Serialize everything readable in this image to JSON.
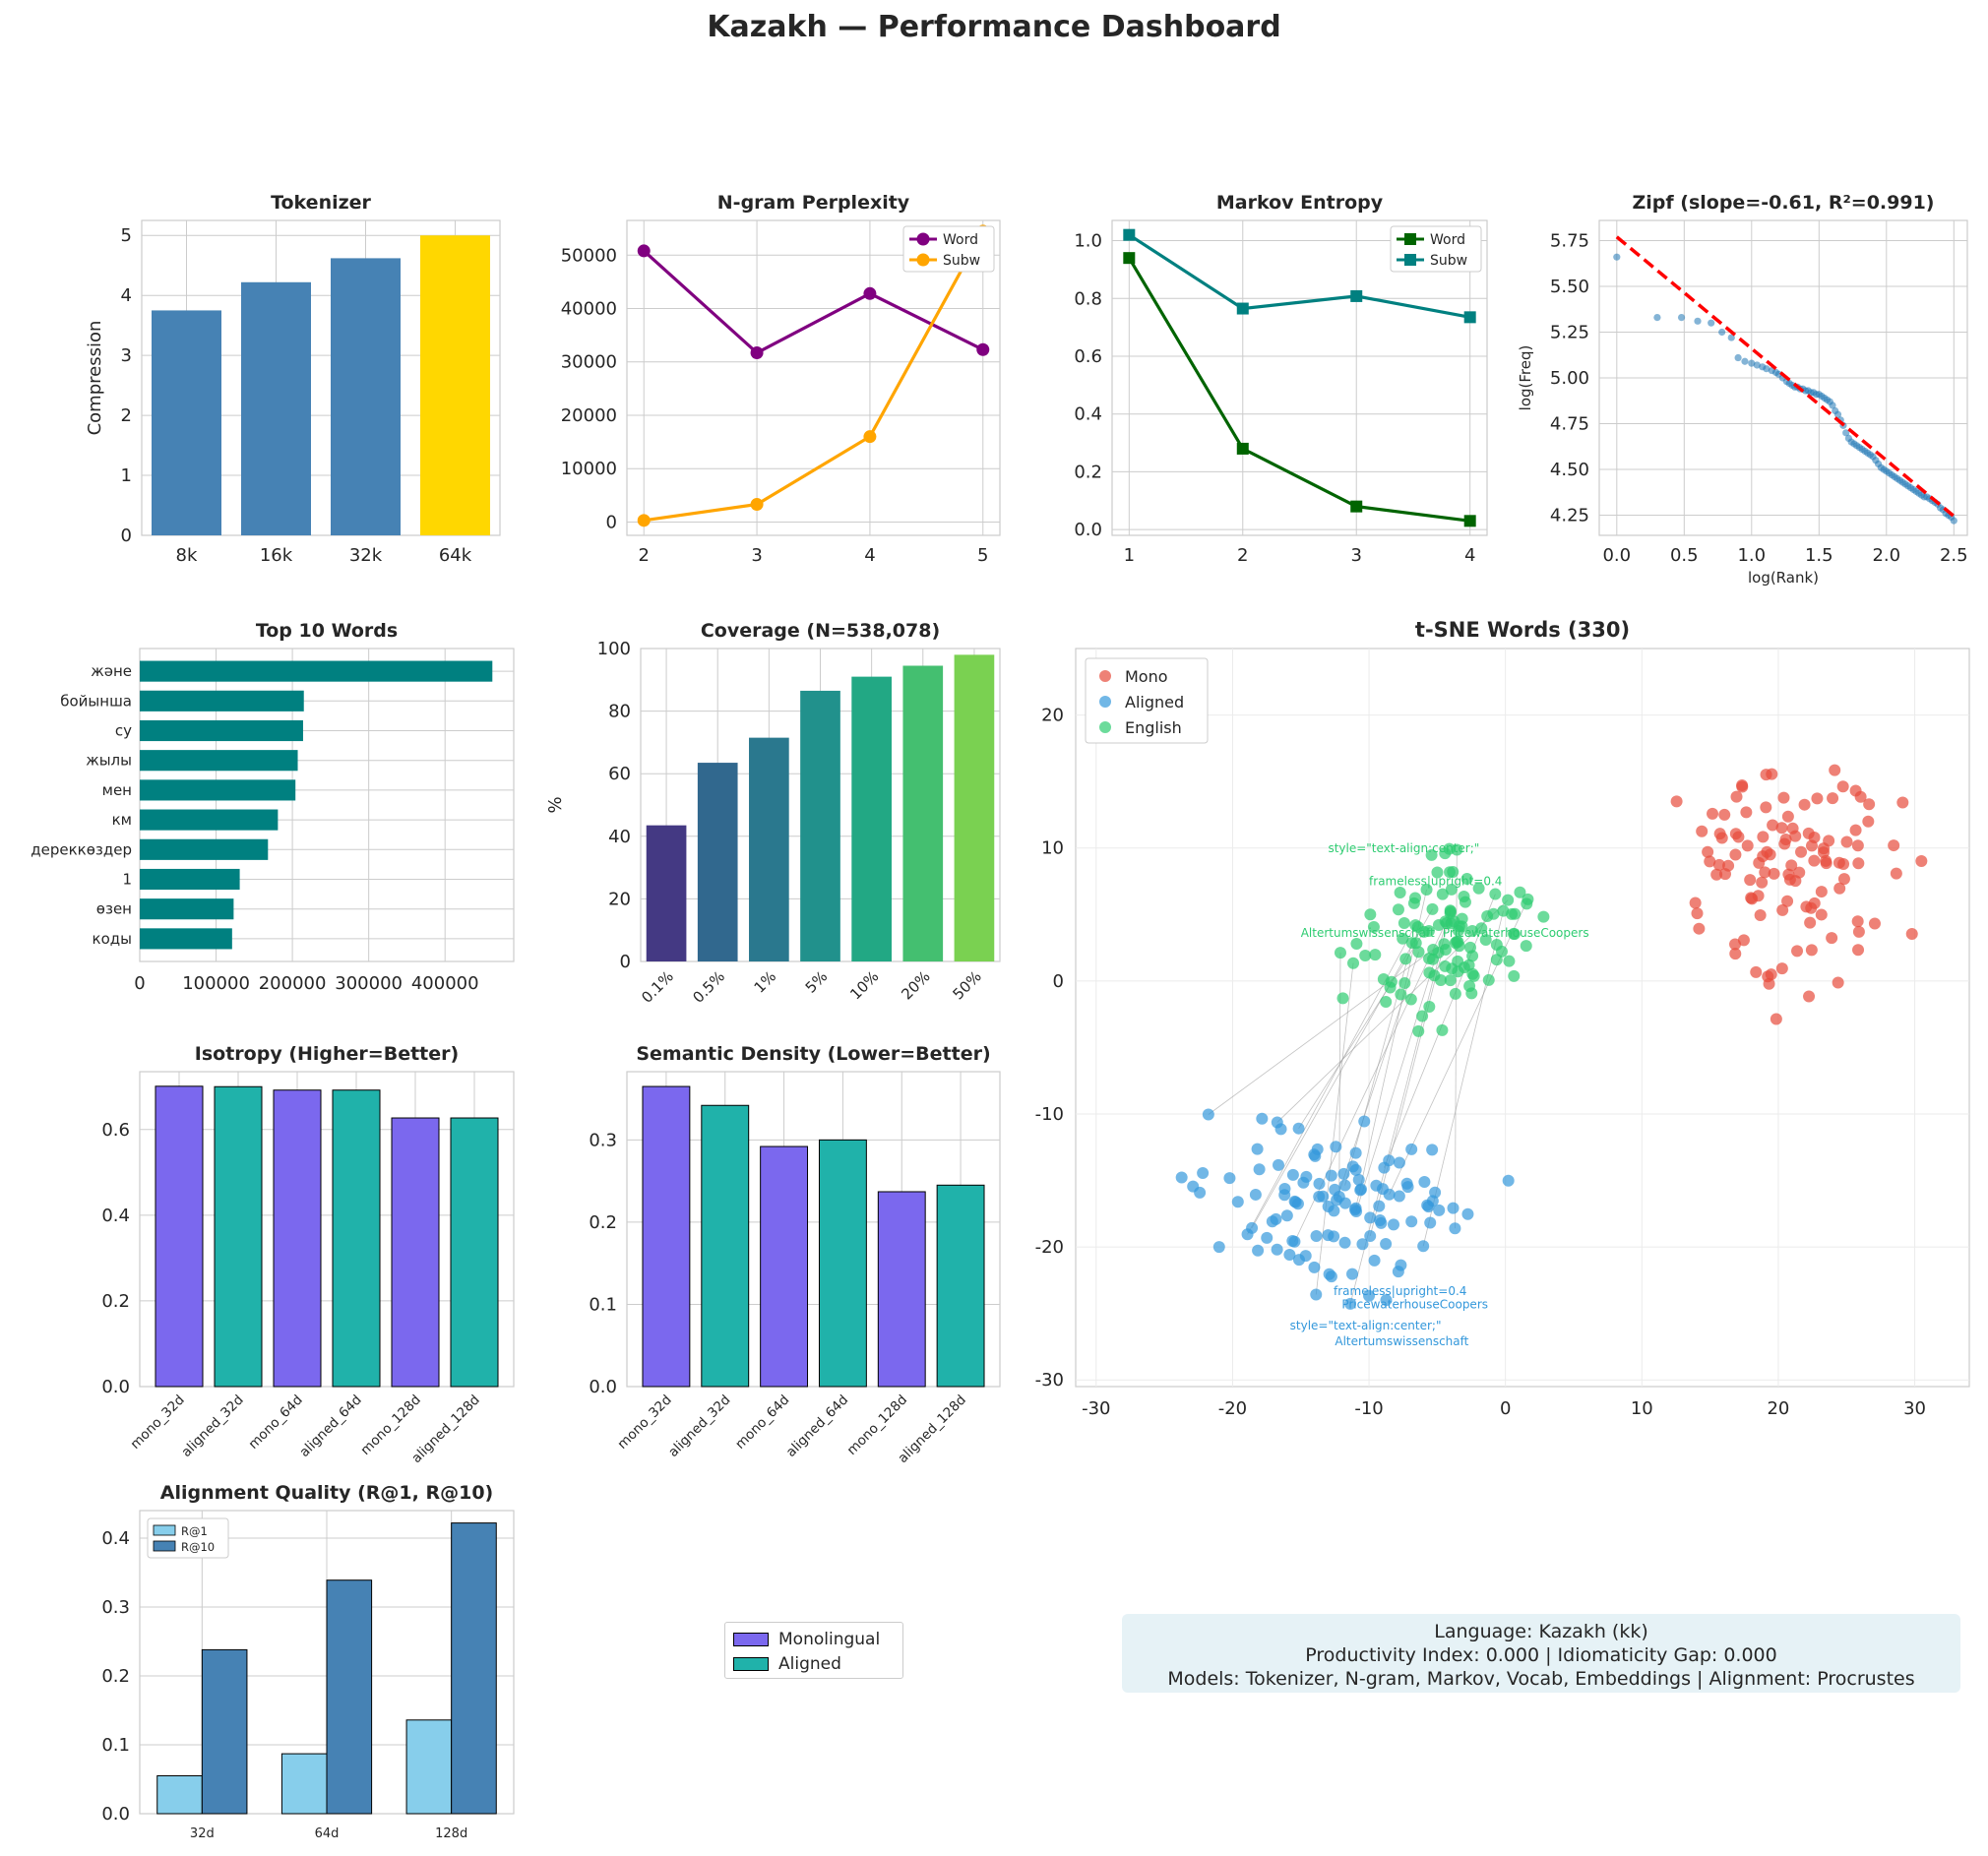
{
  "suptitle": "Kazakh — Performance Dashboard",
  "info": {
    "line1": "Language: Kazakh (kk)",
    "line2": "Productivity Index: 0.000  |  Idiomaticity Gap: 0.000",
    "line3": "Models: Tokenizer, N-gram, Markov, Vocab, Embeddings  |  Alignment: Procrustes"
  },
  "figure_legend": [
    {
      "label": "Monolingual",
      "color": "#7b68ee"
    },
    {
      "label": "Aligned",
      "color": "#20b2aa"
    }
  ],
  "chart_data": [
    {
      "id": "tokenizer",
      "type": "bar",
      "title": "Tokenizer",
      "ylabel": "Compression",
      "categories": [
        "8k",
        "16k",
        "32k",
        "64k"
      ],
      "values": [
        3.75,
        4.22,
        4.62,
        5.0
      ],
      "colors": [
        "#4682b4",
        "#4682b4",
        "#4682b4",
        "#ffd700"
      ],
      "ylim": [
        0,
        5.25
      ],
      "yticks": [
        0,
        1,
        2,
        3,
        4,
        5
      ]
    },
    {
      "id": "ngram",
      "type": "line",
      "title": "N-gram Perplexity",
      "x": [
        2,
        3,
        4,
        5
      ],
      "xlim": [
        1.85,
        5.15
      ],
      "ylim": [
        -2500,
        56500
      ],
      "yticks": [
        0,
        10000,
        20000,
        30000,
        40000,
        50000
      ],
      "legend_position": "top-right",
      "series": [
        {
          "name": "Word",
          "color": "#800080",
          "marker": "circle",
          "values": [
            50800,
            31700,
            42800,
            32300
          ]
        },
        {
          "name": "Subw",
          "color": "#ffa500",
          "marker": "circle",
          "values": [
            300,
            3300,
            16000,
            54500
          ]
        }
      ]
    },
    {
      "id": "markov",
      "type": "line",
      "title": "Markov Entropy",
      "x": [
        1,
        2,
        3,
        4
      ],
      "xlim": [
        0.85,
        4.15
      ],
      "ylim": [
        -0.02,
        1.07
      ],
      "yticks": [
        0.0,
        0.2,
        0.4,
        0.6,
        0.8,
        1.0
      ],
      "legend_position": "top-right",
      "series": [
        {
          "name": "Word",
          "color": "#006400",
          "marker": "square",
          "values": [
            0.94,
            0.28,
            0.08,
            0.03
          ]
        },
        {
          "name": "Subw",
          "color": "#008080",
          "marker": "square",
          "values": [
            1.02,
            0.765,
            0.808,
            0.735
          ]
        }
      ]
    },
    {
      "id": "zipf",
      "type": "scatter",
      "title": "Zipf (slope=-0.61, R²=0.991)",
      "xlabel": "log(Rank)",
      "ylabel": "log(Freq)",
      "xlim": [
        -0.13,
        2.6
      ],
      "ylim": [
        4.14,
        5.86
      ],
      "xticks": [
        0.0,
        0.5,
        1.0,
        1.5,
        2.0,
        2.5
      ],
      "yticks": [
        4.25,
        4.5,
        4.75,
        5.0,
        5.25,
        5.5,
        5.75
      ],
      "fit": {
        "slope": -0.61,
        "intercept": 5.77,
        "color": "#ff0000"
      },
      "point_color": "#1f77b4",
      "x": [
        0.0,
        0.3,
        0.48,
        0.6,
        0.7,
        0.78,
        0.85,
        0.9,
        0.95,
        1.0,
        1.04,
        1.08,
        1.11,
        1.15,
        1.18,
        1.2,
        1.23,
        1.26,
        1.28,
        1.3,
        1.32,
        1.34,
        1.36,
        1.38,
        1.4,
        1.42,
        1.44,
        1.46,
        1.48,
        1.5,
        1.52,
        1.54,
        1.56,
        1.58,
        1.6,
        1.62,
        1.64,
        1.66,
        1.68,
        1.7,
        1.72,
        1.74,
        1.76,
        1.78,
        1.8,
        1.82,
        1.84,
        1.86,
        1.88,
        1.9,
        1.92,
        1.94,
        1.96,
        1.98,
        2.0,
        2.02,
        2.04,
        2.06,
        2.08,
        2.1,
        2.12,
        2.14,
        2.16,
        2.18,
        2.2,
        2.22,
        2.24,
        2.26,
        2.28,
        2.3,
        2.32,
        2.34,
        2.36,
        2.38,
        2.4,
        2.42,
        2.44,
        2.46,
        2.48,
        2.5
      ],
      "y": [
        5.66,
        5.33,
        5.33,
        5.31,
        5.3,
        5.25,
        5.22,
        5.11,
        5.09,
        5.08,
        5.07,
        5.06,
        5.05,
        5.04,
        5.03,
        5.02,
        5.0,
        4.98,
        4.97,
        4.96,
        4.95,
        4.95,
        4.94,
        4.94,
        4.93,
        4.93,
        4.92,
        4.92,
        4.91,
        4.91,
        4.9,
        4.89,
        4.88,
        4.87,
        4.85,
        4.82,
        4.8,
        4.77,
        4.74,
        4.7,
        4.67,
        4.65,
        4.64,
        4.63,
        4.62,
        4.61,
        4.6,
        4.59,
        4.58,
        4.57,
        4.55,
        4.53,
        4.51,
        4.5,
        4.49,
        4.48,
        4.47,
        4.46,
        4.45,
        4.44,
        4.43,
        4.42,
        4.41,
        4.4,
        4.39,
        4.38,
        4.37,
        4.36,
        4.35,
        4.35,
        4.34,
        4.33,
        4.32,
        4.31,
        4.29,
        4.28,
        4.26,
        4.25,
        4.24,
        4.22
      ]
    },
    {
      "id": "topwords",
      "type": "bar",
      "orientation": "horizontal",
      "title": "Top 10 Words",
      "categories": [
        "және",
        "бойынша",
        "су",
        "жылы",
        "мен",
        "км",
        "дереккөздер",
        "1",
        "өзен",
        "коды"
      ],
      "values": [
        462000,
        215000,
        214000,
        207000,
        204000,
        181000,
        168000,
        131000,
        123000,
        121000
      ],
      "color": "#008080",
      "xlim": [
        0,
        490000
      ],
      "xticks": [
        0,
        100000,
        200000,
        300000,
        400000
      ],
      "xticklabels": [
        "0",
        "100000",
        "200000",
        "300000",
        "400000"
      ]
    },
    {
      "id": "coverage",
      "type": "bar",
      "title": "Coverage (N=538,078)",
      "ylabel": "%",
      "categories": [
        "0.1%",
        "0.5%",
        "1%",
        "5%",
        "10%",
        "20%",
        "50%"
      ],
      "values": [
        43.5,
        63.5,
        71.5,
        86.5,
        91.0,
        94.5,
        98.0
      ],
      "colors": [
        "#443983",
        "#31688e",
        "#2a788e",
        "#21918c",
        "#22a884",
        "#44bf70",
        "#7ad151"
      ],
      "ylim": [
        0,
        100
      ],
      "yticks": [
        0,
        20,
        40,
        60,
        80,
        100
      ]
    },
    {
      "id": "isotropy",
      "type": "bar",
      "title": "Isotropy (Higher=Better)",
      "categories": [
        "mono_32d",
        "aligned_32d",
        "mono_64d",
        "aligned_64d",
        "mono_128d",
        "aligned_128d"
      ],
      "values": [
        0.701,
        0.7,
        0.692,
        0.692,
        0.627,
        0.627
      ],
      "colors": [
        "#7b68ee",
        "#20b2aa",
        "#7b68ee",
        "#20b2aa",
        "#7b68ee",
        "#20b2aa"
      ],
      "ylim": [
        0,
        0.735
      ],
      "yticks": [
        0.0,
        0.2,
        0.4,
        0.6
      ]
    },
    {
      "id": "density",
      "type": "bar",
      "title": "Semantic Density (Lower=Better)",
      "categories": [
        "mono_32d",
        "aligned_32d",
        "mono_64d",
        "aligned_64d",
        "mono_128d",
        "aligned_128d"
      ],
      "values": [
        0.365,
        0.342,
        0.292,
        0.3,
        0.237,
        0.245
      ],
      "colors": [
        "#7b68ee",
        "#20b2aa",
        "#7b68ee",
        "#20b2aa",
        "#7b68ee",
        "#20b2aa"
      ],
      "ylim": [
        0,
        0.383
      ],
      "yticks": [
        0.0,
        0.1,
        0.2,
        0.3
      ]
    },
    {
      "id": "alignment",
      "type": "bar",
      "title": "Alignment Quality (R@1, R@10)",
      "categories": [
        "32d",
        "64d",
        "128d"
      ],
      "ylim": [
        0,
        0.44
      ],
      "yticks": [
        0.0,
        0.1,
        0.2,
        0.3,
        0.4
      ],
      "legend_position": "top-left",
      "series": [
        {
          "name": "R@1",
          "color": "#87ceeb",
          "values": [
            0.055,
            0.087,
            0.136
          ]
        },
        {
          "name": "R@10",
          "color": "#4682b4",
          "values": [
            0.238,
            0.339,
            0.422
          ]
        }
      ]
    },
    {
      "id": "tsne",
      "type": "scatter",
      "title": "t-SNE Words (330)",
      "xlim": [
        -31.5,
        34
      ],
      "ylim": [
        -30.5,
        25
      ],
      "xticks": [
        -30,
        -20,
        -10,
        0,
        10,
        20,
        30
      ],
      "yticks": [
        -30,
        -20,
        -10,
        0,
        10,
        20
      ],
      "legend_position": "top-left",
      "series": [
        {
          "name": "Mono",
          "color": "#e74c3c",
          "center": [
            21,
            8
          ],
          "spread": [
            5.5,
            6.2
          ],
          "n": 110
        },
        {
          "name": "Aligned",
          "color": "#3498db",
          "center": [
            -13,
            -17
          ],
          "spread": [
            8,
            5
          ],
          "n": 110
        },
        {
          "name": "English",
          "color": "#2ecc71",
          "center": [
            -4,
            3
          ],
          "spread": [
            5.5,
            5
          ],
          "n": 110
        }
      ],
      "annotations": [
        {
          "text": "style=\"text-align:center;\"",
          "x": -13,
          "y": 9.7,
          "color": "#2ecc71"
        },
        {
          "text": "frameless|upright=0.4",
          "x": -10,
          "y": 7.2,
          "color": "#2ecc71"
        },
        {
          "text": "Altertumswissenschaft",
          "x": -15,
          "y": 3.3,
          "color": "#2ecc71"
        },
        {
          "text": "PricewaterhouseCoopers",
          "x": -4.6,
          "y": 3.3,
          "color": "#2ecc71"
        },
        {
          "text": "frameless|upright=0.4",
          "x": -12.6,
          "y": -23.6,
          "color": "#3498db"
        },
        {
          "text": "PricewaterhouseCoopers",
          "x": -12,
          "y": -24.6,
          "color": "#3498db"
        },
        {
          "text": "style=\"text-align:center;\"",
          "x": -15.8,
          "y": -26.2,
          "color": "#3498db"
        },
        {
          "text": "Altertumswissenschaft",
          "x": -12.5,
          "y": -27.4,
          "color": "#3498db"
        }
      ]
    }
  ]
}
